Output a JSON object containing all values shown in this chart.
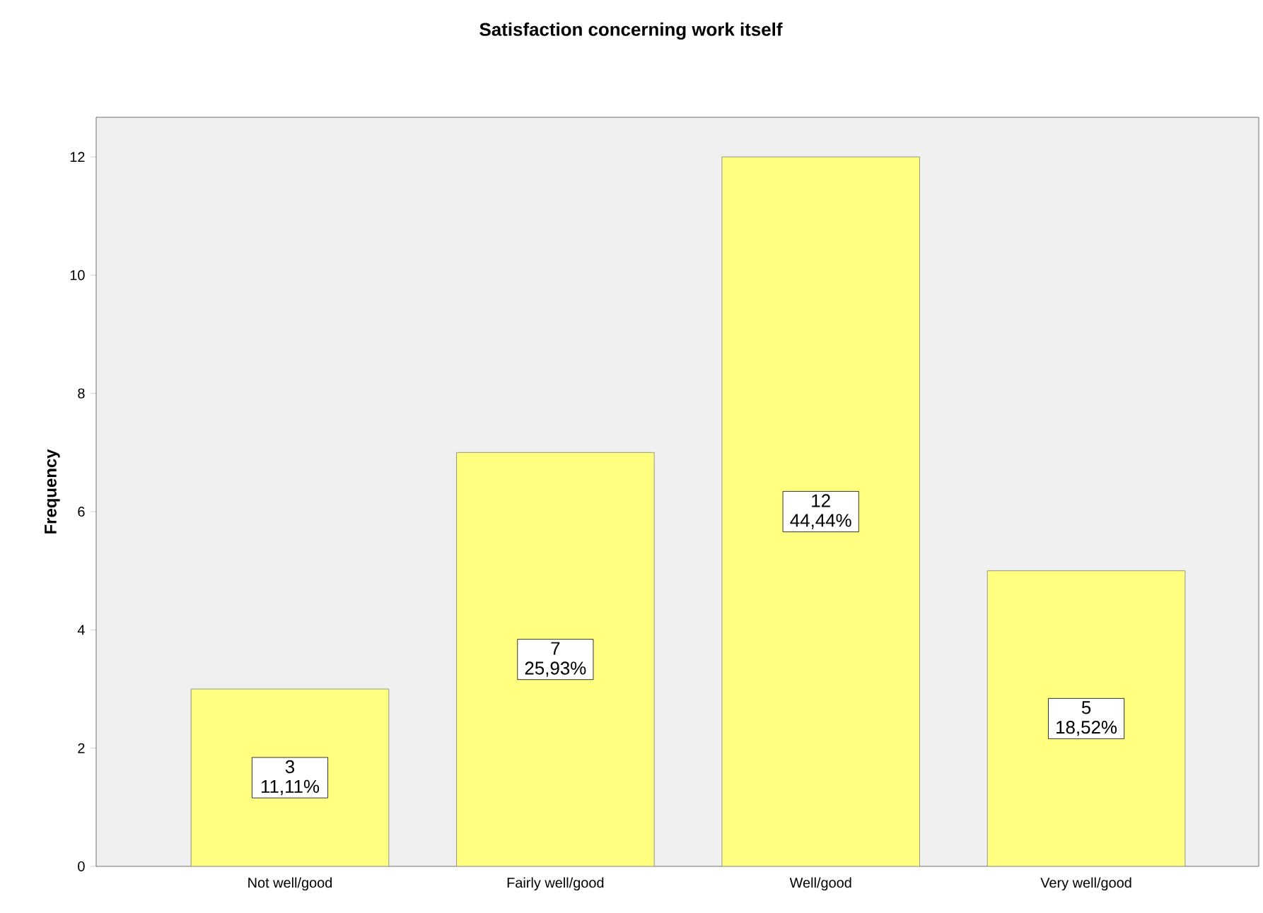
{
  "chart_data": {
    "type": "bar",
    "title": "Satisfaction concerning work itself",
    "ylabel": "Frequency",
    "categories": [
      "Not well/good",
      "Fairly well/good",
      "Well/good",
      "Very well/good"
    ],
    "values": [
      3,
      7,
      12,
      5
    ],
    "color": "#ffff80",
    "value_labels": [
      "3 11,11%",
      "7 25,93%",
      "12 44,44%",
      "5 18,52%"
    ],
    "ylim": [
      0,
      12.67
    ],
    "yticks": [
      0,
      2,
      4,
      6,
      8,
      10,
      12
    ],
    "grid": false
  }
}
